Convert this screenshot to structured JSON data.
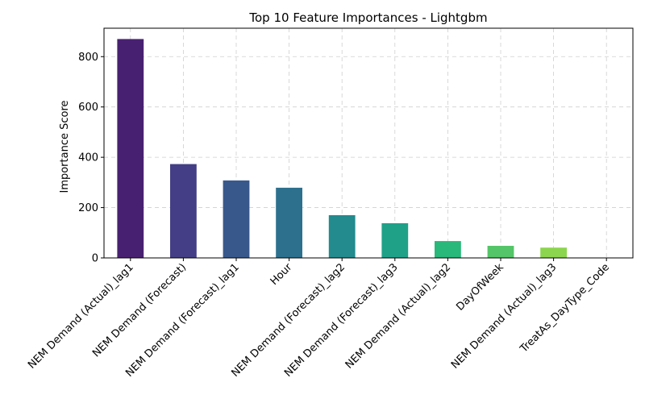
{
  "chart_data": {
    "type": "bar",
    "title": "Top 10 Feature Importances - Lightgbm",
    "xlabel": "",
    "ylabel": "Importance Score",
    "categories": [
      "NEM Demand (Actual)_lag1",
      "NEM Demand (Forecast)",
      "NEM Demand (Forecast)_lag1",
      "Hour",
      "NEM Demand (Forecast)_lag2",
      "NEM Demand (Forecast)_lag3",
      "NEM Demand (Actual)_lag2",
      "DayOfWeek",
      "NEM Demand (Actual)_lag3",
      "TreatAs_DayType_Code"
    ],
    "values": [
      870,
      373,
      308,
      279,
      170,
      138,
      67,
      48,
      41,
      0
    ],
    "colors": [
      "#482071",
      "#433e85",
      "#38588c",
      "#2d708e",
      "#238a8d",
      "#1fa188",
      "#29b77a",
      "#54c568",
      "#8cd54f",
      "#c8e020"
    ],
    "ylim": [
      0,
      913
    ],
    "yticks": [
      0,
      200,
      400,
      600,
      800
    ],
    "grid": true
  }
}
